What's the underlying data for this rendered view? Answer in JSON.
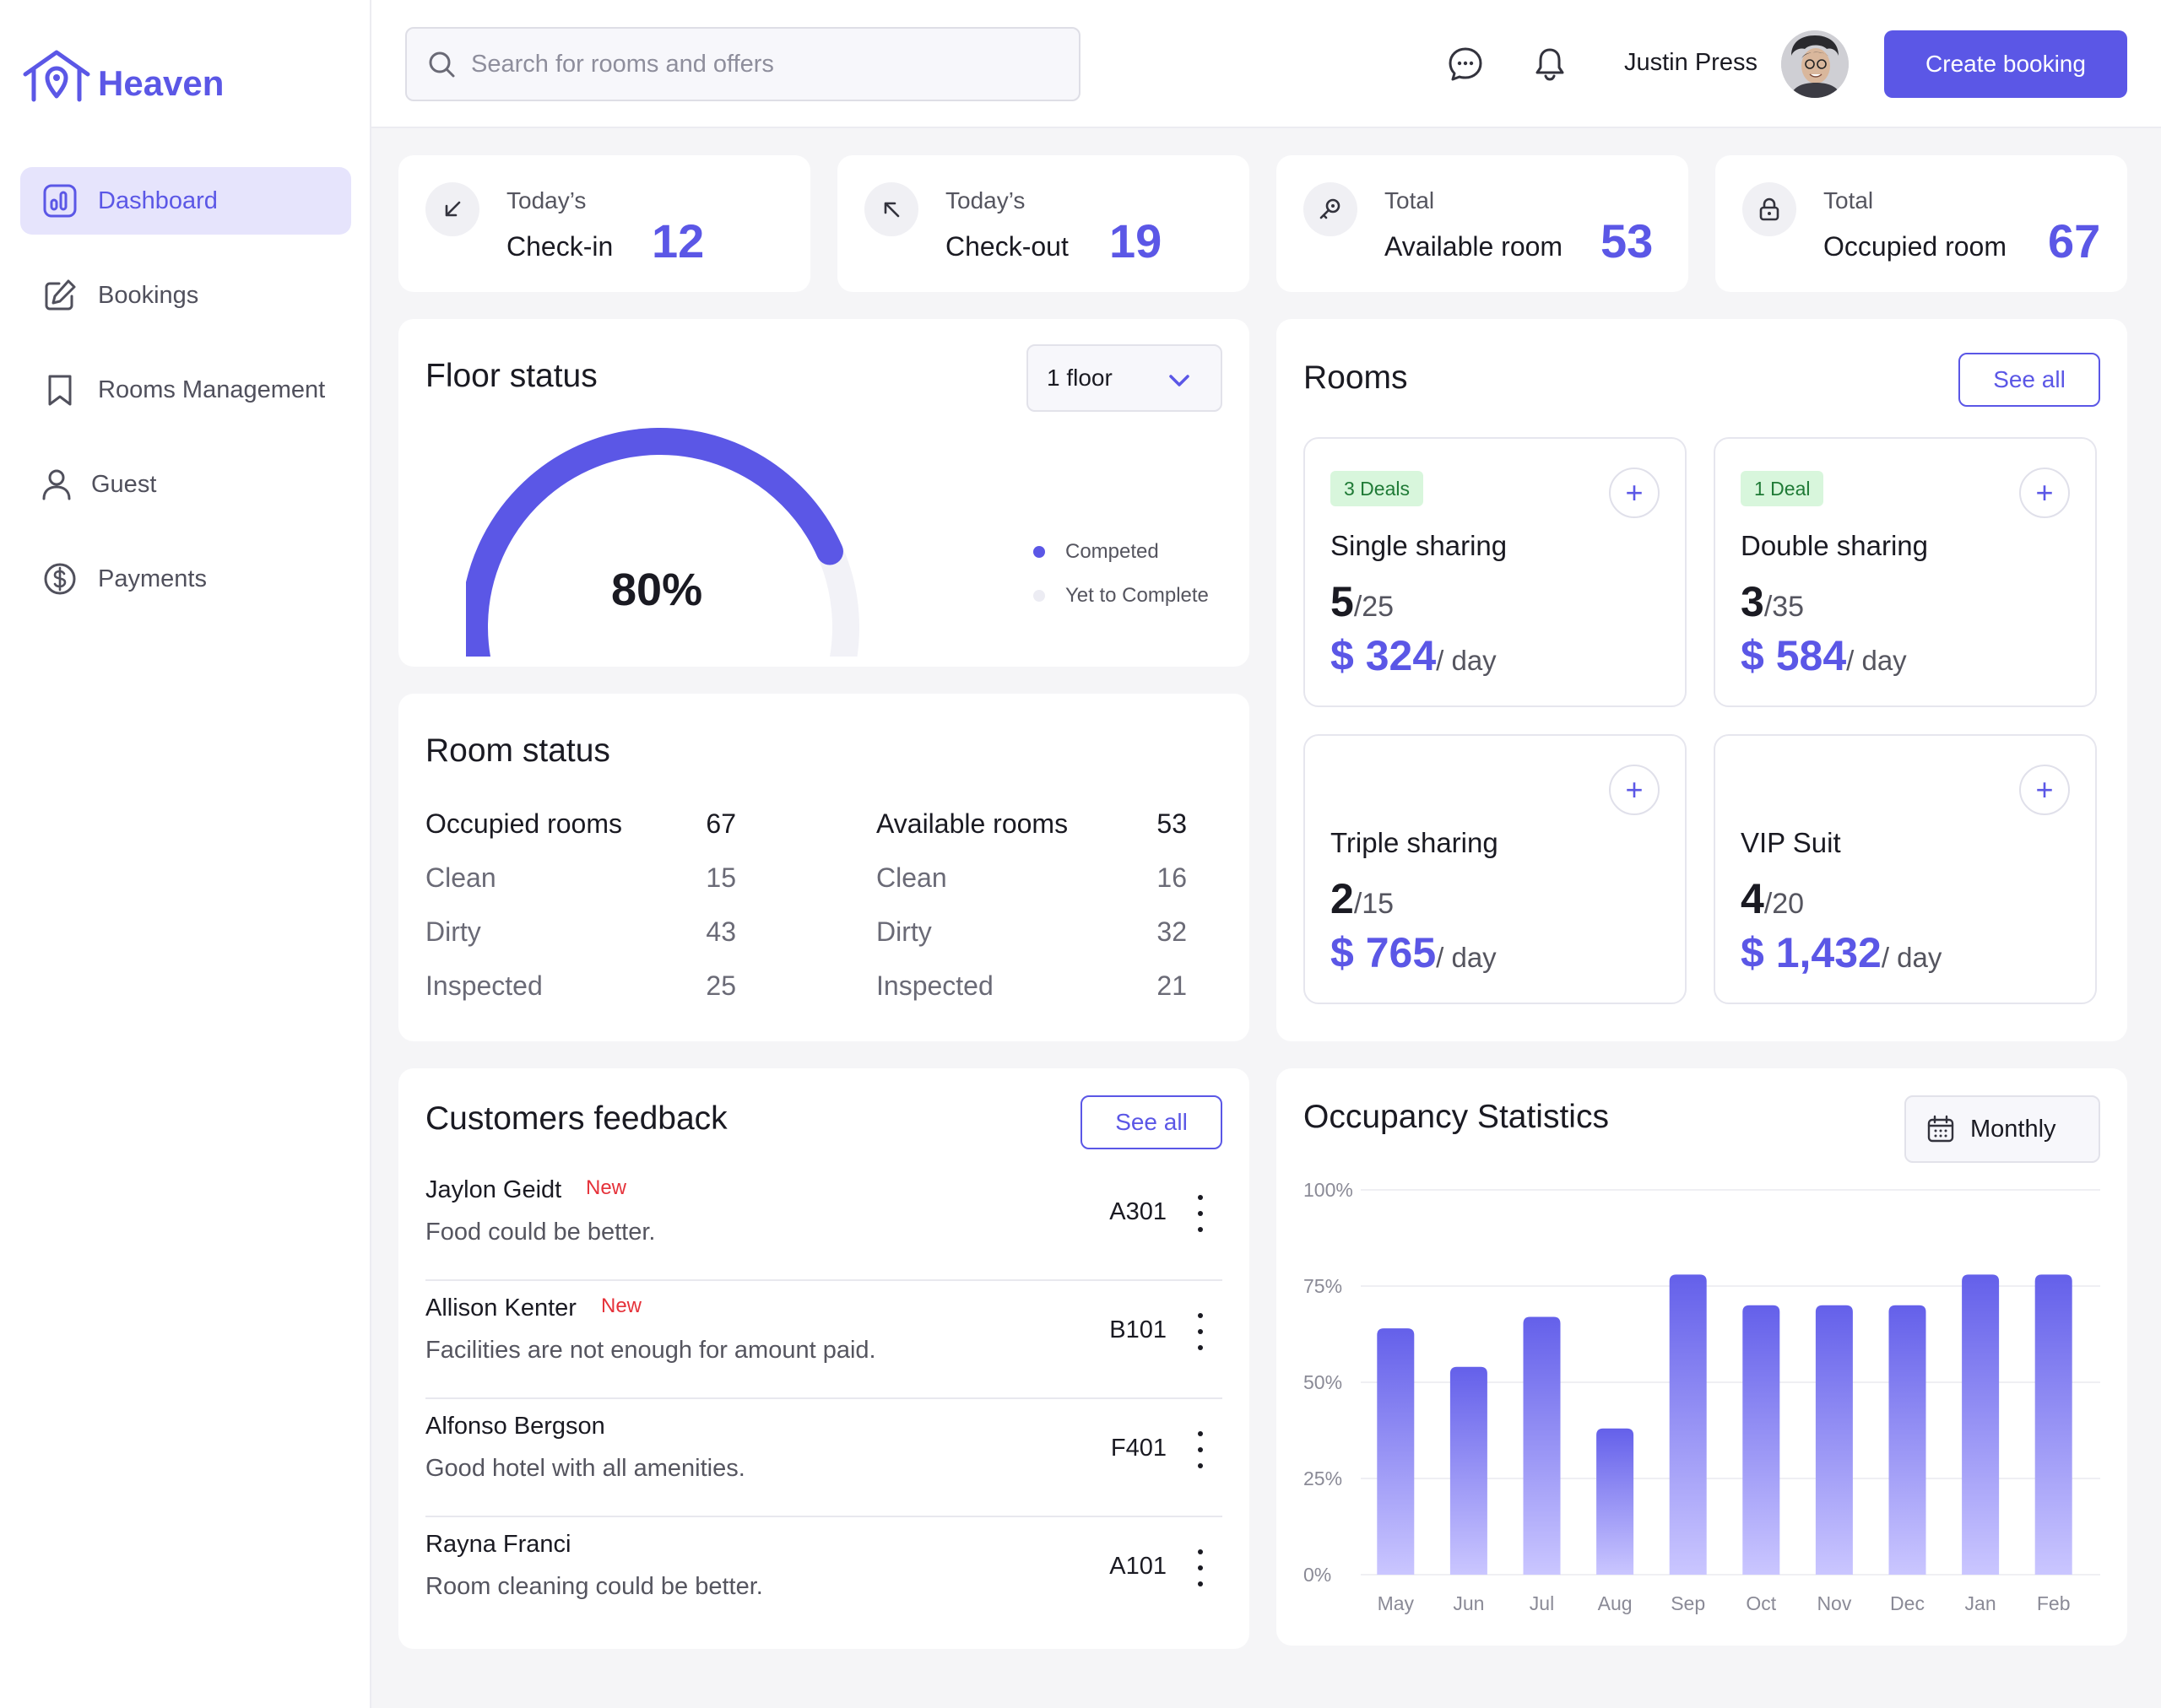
{
  "app": {
    "name": "Heaven"
  },
  "sidebar": {
    "items": [
      {
        "label": "Dashboard",
        "icon": "chart-icon",
        "active": true
      },
      {
        "label": "Bookings",
        "icon": "edit-icon"
      },
      {
        "label": "Rooms Management",
        "icon": "bookmark-icon"
      },
      {
        "label": "Guest",
        "icon": "user-icon"
      },
      {
        "label": "Payments",
        "icon": "dollar-icon"
      }
    ]
  },
  "header": {
    "search_placeholder": "Search for rooms and offers",
    "user_name": "Justin Press",
    "create_label": "Create booking"
  },
  "stats": [
    {
      "line1": "Today’s",
      "line2": "Check-in",
      "value": "12",
      "icon": "arrow-down-left-icon"
    },
    {
      "line1": "Today’s",
      "line2": "Check-out",
      "value": "19",
      "icon": "arrow-up-left-icon"
    },
    {
      "line1": "Total",
      "line2": "Available room",
      "value": "53",
      "icon": "key-icon"
    },
    {
      "line1": "Total",
      "line2": "Occupied room",
      "value": "67",
      "icon": "lock-icon"
    }
  ],
  "floor_status": {
    "title": "Floor status",
    "floor_selected": "1 floor",
    "percent_label": "80%",
    "percent": 80,
    "legend": [
      {
        "label": "Competed",
        "color": "#5b57e6"
      },
      {
        "label": "Yet to Complete",
        "color": "#ececf3"
      }
    ]
  },
  "room_status": {
    "title": "Room status",
    "occupied": {
      "rows": [
        {
          "label": "Occupied rooms",
          "value": "67"
        },
        {
          "label": "Clean",
          "value": "15"
        },
        {
          "label": "Dirty",
          "value": "43"
        },
        {
          "label": "Inspected",
          "value": "25"
        }
      ]
    },
    "available": {
      "rows": [
        {
          "label": "Available rooms",
          "value": "53"
        },
        {
          "label": "Clean",
          "value": "16"
        },
        {
          "label": "Dirty",
          "value": "32"
        },
        {
          "label": "Inspected",
          "value": "21"
        }
      ]
    }
  },
  "rooms": {
    "title": "Rooms",
    "see_all": "See all",
    "cards": [
      {
        "badge": "3 Deals",
        "name": "Single sharing",
        "count": "5",
        "total": "/25",
        "price": "$ 324",
        "unit": "/ day"
      },
      {
        "badge": "1 Deal",
        "name": "Double sharing",
        "count": "3",
        "total": "/35",
        "price": "$ 584",
        "unit": "/ day"
      },
      {
        "badge": "",
        "name": "Triple sharing",
        "count": "2",
        "total": "/15",
        "price": "$ 765",
        "unit": "/ day"
      },
      {
        "badge": "",
        "name": "VIP Suit",
        "count": "4",
        "total": "/20",
        "price": "$ 1,432",
        "unit": "/ day"
      }
    ]
  },
  "feedback": {
    "title": "Customers feedback",
    "see_all": "See all",
    "items": [
      {
        "name": "Jaylon Geidt",
        "tag": "New",
        "text": "Food could be better.",
        "room": "A301"
      },
      {
        "name": "Allison Kenter",
        "tag": "New",
        "text": "Facilities are not enough for amount paid.",
        "room": "B101"
      },
      {
        "name": "Alfonso Bergson",
        "tag": "",
        "text": "Good hotel with all amenities.",
        "room": "F401"
      },
      {
        "name": "Rayna Franci",
        "tag": "",
        "text": "Room cleaning could be better.",
        "room": "A101"
      }
    ]
  },
  "occupancy": {
    "title": "Occupancy Statistics",
    "period": "Monthly"
  },
  "chart_data": {
    "type": "bar",
    "title": "Occupancy Statistics",
    "categories": [
      "May",
      "Jun",
      "Jul",
      "Aug",
      "Sep",
      "Oct",
      "Nov",
      "Dec",
      "Jan",
      "Feb"
    ],
    "values": [
      64,
      54,
      67,
      38,
      78,
      70,
      70,
      70,
      78,
      78
    ],
    "y_ticks": [
      "100%",
      "75%",
      "50%",
      "25%",
      "0%"
    ],
    "ylim": [
      0,
      100
    ],
    "colors": {
      "bar_top": "#6460ea",
      "bar_bottom": "#cac6ff"
    }
  }
}
